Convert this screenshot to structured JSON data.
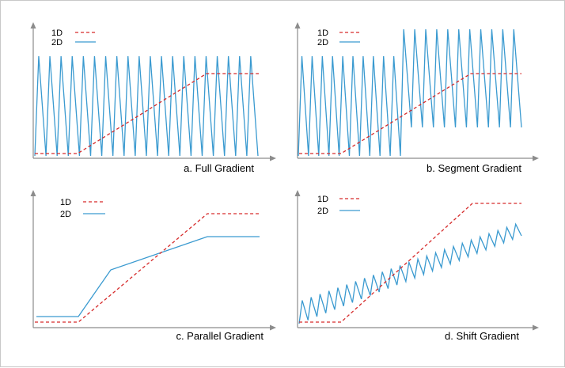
{
  "legend": {
    "one_d": "1D",
    "two_d": "2D"
  },
  "colors": {
    "one_d": "#d62b2b",
    "two_d": "#3a9ad0",
    "axis": "#8c8c8c"
  },
  "panels": [
    {
      "id": "a",
      "caption": "a.  Full Gradient"
    },
    {
      "id": "b",
      "caption": "b.  Segment Gradient"
    },
    {
      "id": "c",
      "caption": "c.  Parallel Gradient"
    },
    {
      "id": "d",
      "caption": "d.  Shift Gradient"
    }
  ]
}
